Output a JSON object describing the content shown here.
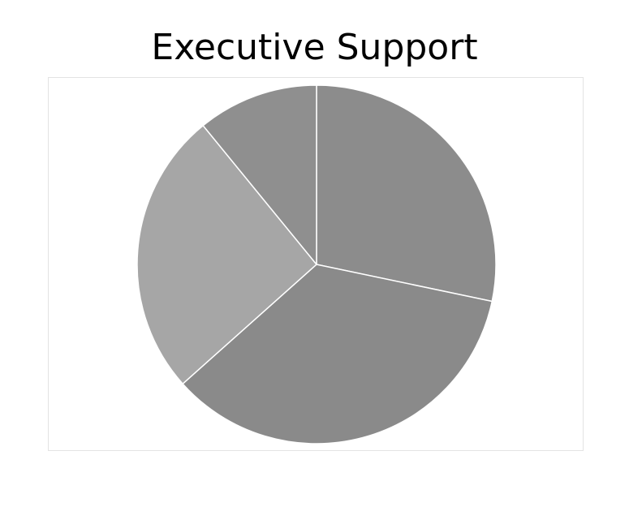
{
  "chart_data": {
    "type": "pie",
    "title": "Executive Support",
    "categories": [
      "",
      "",
      "",
      ""
    ],
    "values": [
      28.3,
      35.1,
      25.7,
      10.9
    ],
    "start_angle_deg": 0,
    "direction": "clockwise",
    "legend": "none",
    "grid": false,
    "colors": [
      "#8c8c8c",
      "#8a8a8a",
      "#a6a6a6",
      "#8f8f8f"
    ],
    "slice_border_color": "#ffffff"
  }
}
